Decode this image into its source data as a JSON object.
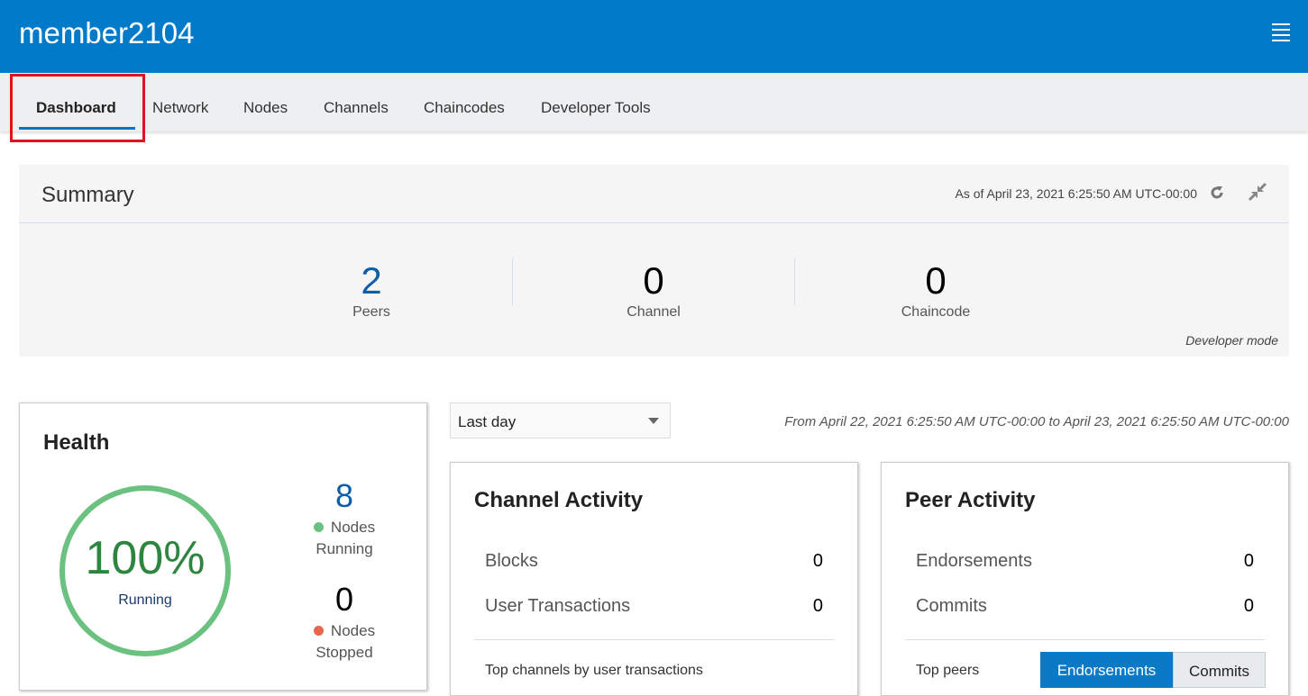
{
  "header": {
    "title": "member2104",
    "menu_icon": "hamburger-icon"
  },
  "nav": {
    "tabs": [
      "Dashboard",
      "Network",
      "Nodes",
      "Channels",
      "Chaincodes",
      "Developer Tools"
    ],
    "active": "Dashboard"
  },
  "summary": {
    "title": "Summary",
    "as_of": "As of April 23, 2021 6:25:50 AM UTC-00:00",
    "stats": [
      {
        "value": "2",
        "label": "Peers"
      },
      {
        "value": "0",
        "label": "Channel"
      },
      {
        "value": "0",
        "label": "Chaincode"
      }
    ],
    "mode": "Developer mode"
  },
  "filter": {
    "selected": "Last day",
    "range": "From April 22, 2021 6:25:50 AM UTC-00:00 to April 23, 2021 6:25:50 AM UTC-00:00"
  },
  "health": {
    "title": "Health",
    "percent": "100%",
    "percent_label": "Running",
    "running_count": "8",
    "running_label": "Nodes",
    "running_sub": "Running",
    "stopped_count": "0",
    "stopped_label": "Nodes",
    "stopped_sub": "Stopped",
    "colors": {
      "running": "#6bc17f",
      "stopped": "#e8664a"
    }
  },
  "channel_activity": {
    "title": "Channel Activity",
    "rows": [
      {
        "label": "Blocks",
        "value": "0"
      },
      {
        "label": "User Transactions",
        "value": "0"
      }
    ],
    "footer": "Top channels by user transactions"
  },
  "peer_activity": {
    "title": "Peer Activity",
    "rows": [
      {
        "label": "Endorsements",
        "value": "0"
      },
      {
        "label": "Commits",
        "value": "0"
      }
    ],
    "footer": "Top peers",
    "toggle": [
      "Endorsements",
      "Commits"
    ]
  }
}
